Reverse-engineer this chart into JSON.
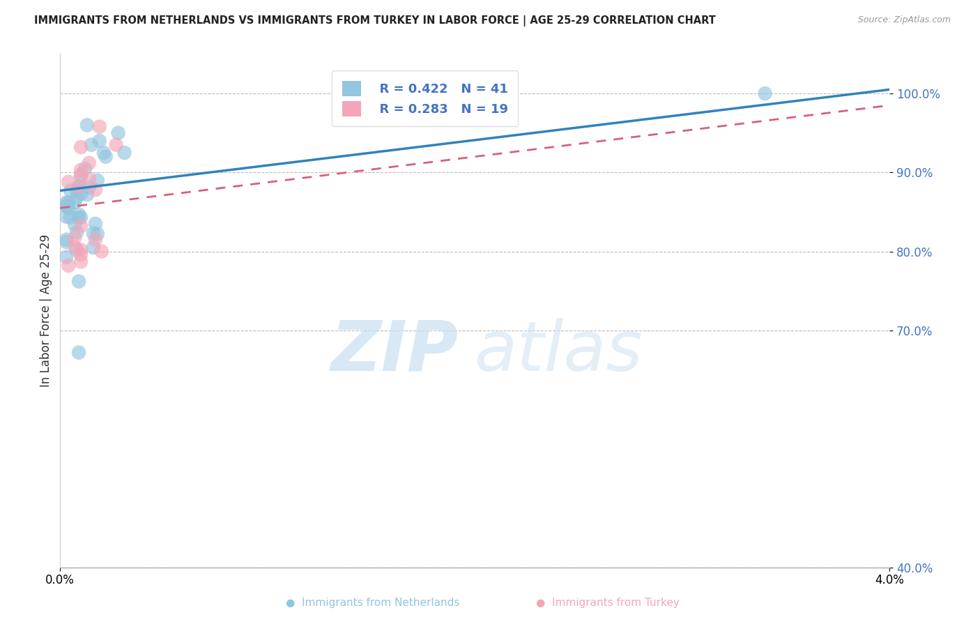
{
  "title": "IMMIGRANTS FROM NETHERLANDS VS IMMIGRANTS FROM TURKEY IN LABOR FORCE | AGE 25-29 CORRELATION CHART",
  "source": "Source: ZipAtlas.com",
  "ylabel": "In Labor Force | Age 25-29",
  "xlabel": "",
  "xlim": [
    0.0,
    0.04
  ],
  "ylim": [
    0.4,
    1.05
  ],
  "yticks": [
    0.4,
    0.7,
    0.8,
    0.9,
    1.0
  ],
  "ytick_labels": [
    "40.0%",
    "70.0%",
    "80.0%",
    "90.0%",
    "100.0%"
  ],
  "xticks": [
    0.0,
    0.04
  ],
  "xtick_labels": [
    "0.0%",
    "4.0%"
  ],
  "R_netherlands": 0.422,
  "N_netherlands": 41,
  "R_turkey": 0.283,
  "N_turkey": 19,
  "color_netherlands": "#92c5de",
  "color_turkey": "#f4a6b8",
  "color_trend_netherlands": "#3182bd",
  "color_trend_turkey": "#d6617a",
  "netherlands_x": [
    0.0013,
    0.0019,
    0.0028,
    0.0015,
    0.0021,
    0.0022,
    0.0031,
    0.0012,
    0.001,
    0.0018,
    0.0009,
    0.0014,
    0.0008,
    0.0005,
    0.001,
    0.0013,
    0.0008,
    0.0007,
    0.0004,
    0.0003,
    0.0003,
    0.0004,
    0.0003,
    0.0009,
    0.0003,
    0.0009,
    0.0005,
    0.001,
    0.0017,
    0.0007,
    0.0008,
    0.0016,
    0.0018,
    0.0003,
    0.0003,
    0.0016,
    0.0008,
    0.0003,
    0.0009,
    0.034,
    0.0009
  ],
  "netherlands_y": [
    0.96,
    0.94,
    0.95,
    0.935,
    0.925,
    0.92,
    0.925,
    0.905,
    0.895,
    0.89,
    0.882,
    0.881,
    0.878,
    0.877,
    0.873,
    0.872,
    0.868,
    0.862,
    0.862,
    0.862,
    0.858,
    0.855,
    0.857,
    0.847,
    0.844,
    0.843,
    0.843,
    0.843,
    0.835,
    0.834,
    0.824,
    0.823,
    0.822,
    0.815,
    0.812,
    0.805,
    0.802,
    0.793,
    0.762,
    1.0,
    0.672
  ],
  "turkey_x": [
    0.0019,
    0.0027,
    0.001,
    0.0014,
    0.001,
    0.001,
    0.0014,
    0.0004,
    0.0009,
    0.0017,
    0.001,
    0.0007,
    0.0017,
    0.0007,
    0.001,
    0.002,
    0.001,
    0.001,
    0.0004
  ],
  "turkey_y": [
    0.958,
    0.935,
    0.932,
    0.912,
    0.903,
    0.897,
    0.892,
    0.888,
    0.882,
    0.878,
    0.832,
    0.817,
    0.815,
    0.806,
    0.802,
    0.8,
    0.796,
    0.787,
    0.782
  ],
  "trend_nl_x0": 0.0,
  "trend_nl_y0": 0.877,
  "trend_nl_x1": 0.04,
  "trend_nl_y1": 1.005,
  "trend_tr_x0": 0.0,
  "trend_tr_y0": 0.855,
  "trend_tr_x1": 0.04,
  "trend_tr_y1": 0.985
}
